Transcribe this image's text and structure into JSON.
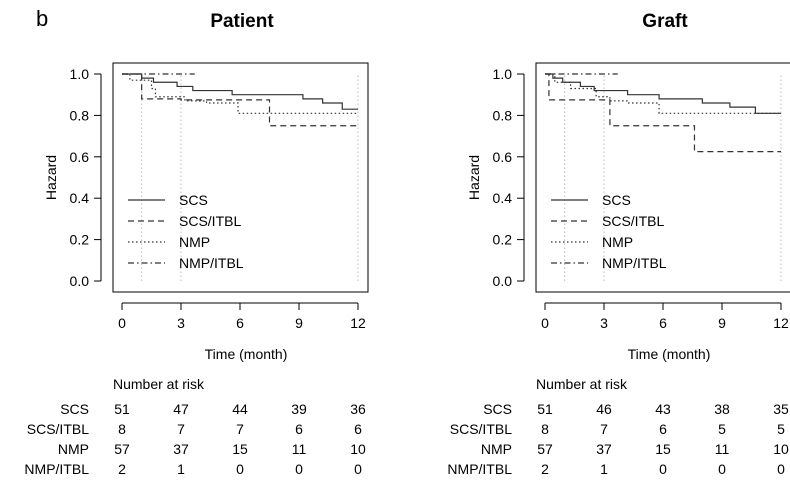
{
  "panel_label": "b",
  "chart_data": [
    {
      "type": "line",
      "title": "Patient",
      "xlabel": "Time (month)",
      "ylabel": "Hazard",
      "xlim": [
        0,
        12
      ],
      "ylim": [
        0,
        1
      ],
      "xticks": [
        "0",
        "3",
        "6",
        "9",
        "12"
      ],
      "yticks": [
        "0.0",
        "0.2",
        "0.4",
        "0.6",
        "0.8",
        "1.0"
      ],
      "vlines": [
        1,
        3,
        12
      ],
      "legend_position": "bottom-left",
      "series": [
        {
          "name": "SCS",
          "dash": "",
          "points": [
            [
              0,
              1.0
            ],
            [
              1.0,
              0.98
            ],
            [
              1.6,
              0.96
            ],
            [
              2.8,
              0.94
            ],
            [
              3.6,
              0.92
            ],
            [
              4.4,
              0.92
            ],
            [
              5.6,
              0.9
            ],
            [
              7.4,
              0.9
            ],
            [
              9.2,
              0.88
            ],
            [
              10.2,
              0.86
            ],
            [
              11.2,
              0.83
            ],
            [
              12,
              0.83
            ]
          ]
        },
        {
          "name": "SCS/ITBL",
          "dash": "6,4",
          "points": [
            [
              0,
              1.0
            ],
            [
              1.0,
              0.88
            ],
            [
              3.0,
              0.875
            ],
            [
              7.5,
              0.75
            ],
            [
              12,
              0.75
            ]
          ]
        },
        {
          "name": "NMP",
          "dash": "1.5,2.5",
          "points": [
            [
              0,
              1.0
            ],
            [
              0.4,
              0.97
            ],
            [
              1.5,
              0.93
            ],
            [
              1.7,
              0.89
            ],
            [
              3.2,
              0.87
            ],
            [
              4.3,
              0.86
            ],
            [
              5.9,
              0.81
            ],
            [
              7.6,
              0.81
            ],
            [
              12,
              0.81
            ]
          ]
        },
        {
          "name": "NMP/ITBL",
          "dash": "6,3,1.5,3",
          "points": [
            [
              0,
              1.0
            ],
            [
              3.7,
              1.0
            ]
          ]
        }
      ],
      "risk_table": {
        "title": "Number at risk",
        "rows": [
          {
            "label": "SCS",
            "values": [
              51,
              47,
              44,
              39,
              36
            ]
          },
          {
            "label": "SCS/ITBL",
            "values": [
              8,
              7,
              7,
              6,
              6
            ]
          },
          {
            "label": "NMP",
            "values": [
              57,
              37,
              15,
              11,
              10
            ]
          },
          {
            "label": "NMP/ITBL",
            "values": [
              2,
              1,
              0,
              0,
              0
            ]
          }
        ]
      }
    },
    {
      "type": "line",
      "title": "Graft",
      "xlabel": "Time (month)",
      "ylabel": "Hazard",
      "xlim": [
        0,
        12
      ],
      "ylim": [
        0,
        1
      ],
      "xticks": [
        "0",
        "3",
        "6",
        "9",
        "12"
      ],
      "yticks": [
        "0.0",
        "0.2",
        "0.4",
        "0.6",
        "0.8",
        "1.0"
      ],
      "vlines": [
        1,
        3,
        12
      ],
      "legend_position": "bottom-left",
      "series": [
        {
          "name": "SCS",
          "dash": "",
          "points": [
            [
              0,
              1.0
            ],
            [
              0.4,
              0.98
            ],
            [
              0.9,
              0.96
            ],
            [
              1.8,
              0.94
            ],
            [
              2.5,
              0.92
            ],
            [
              4.2,
              0.9
            ],
            [
              5.8,
              0.88
            ],
            [
              8.0,
              0.86
            ],
            [
              9.4,
              0.84
            ],
            [
              10.7,
              0.81
            ],
            [
              12,
              0.81
            ]
          ]
        },
        {
          "name": "SCS/ITBL",
          "dash": "6,4",
          "points": [
            [
              0,
              1.0
            ],
            [
              0.2,
              0.875
            ],
            [
              3.3,
              0.75
            ],
            [
              7.6,
              0.625
            ],
            [
              12,
              0.625
            ]
          ]
        },
        {
          "name": "NMP",
          "dash": "1.5,2.5",
          "points": [
            [
              0,
              1.0
            ],
            [
              0.5,
              0.96
            ],
            [
              1.3,
              0.93
            ],
            [
              2.6,
              0.89
            ],
            [
              3.3,
              0.87
            ],
            [
              4.2,
              0.86
            ],
            [
              5.8,
              0.81
            ],
            [
              12,
              0.81
            ]
          ]
        },
        {
          "name": "NMP/ITBL",
          "dash": "6,3,1.5,3",
          "points": [
            [
              0,
              1.0
            ],
            [
              3.7,
              1.0
            ]
          ]
        }
      ],
      "risk_table": {
        "title": "Number at risk",
        "rows": [
          {
            "label": "SCS",
            "values": [
              51,
              46,
              43,
              38,
              35
            ]
          },
          {
            "label": "SCS/ITBL",
            "values": [
              8,
              7,
              6,
              5,
              5
            ]
          },
          {
            "label": "NMP",
            "values": [
              57,
              37,
              15,
              11,
              10
            ]
          },
          {
            "label": "NMP/ITBL",
            "values": [
              2,
              1,
              0,
              0,
              0
            ]
          }
        ]
      }
    }
  ]
}
